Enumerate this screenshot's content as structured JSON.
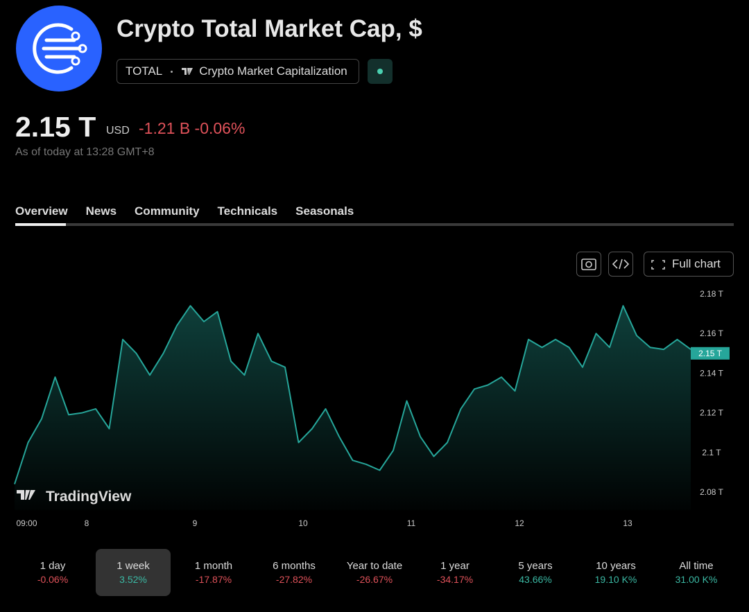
{
  "header": {
    "title": "Crypto Total Market Cap, $",
    "symbol": "TOTAL",
    "description": "Crypto Market Capitalization"
  },
  "quote": {
    "price": "2.15 T",
    "currency": "USD",
    "change": "-1.21 B",
    "change_percent": "-0.06%",
    "as_of": "As of today at 13:28 GMT+8"
  },
  "tabs": [
    "Overview",
    "News",
    "Community",
    "Technicals",
    "Seasonals"
  ],
  "toolbar": {
    "full_chart": "Full chart"
  },
  "chart_data": {
    "type": "line",
    "color": "#26a69a",
    "watermark": "TradingView",
    "x": [
      -1,
      2,
      5,
      8,
      11,
      14,
      17,
      20,
      23,
      26,
      29,
      32,
      35,
      38,
      41,
      44,
      47,
      50,
      53,
      56,
      59,
      62,
      65,
      68,
      71,
      74,
      77,
      80,
      83,
      86,
      89,
      92,
      95,
      98,
      101,
      104,
      107,
      110,
      113,
      116,
      119,
      122,
      125,
      128,
      131,
      134,
      137,
      140,
      143,
      146,
      149
    ],
    "values": [
      2.084,
      2.105,
      2.117,
      2.138,
      2.119,
      2.12,
      2.122,
      2.112,
      2.157,
      2.15,
      2.139,
      2.15,
      2.164,
      2.174,
      2.166,
      2.171,
      2.146,
      2.139,
      2.16,
      2.146,
      2.143,
      2.105,
      2.112,
      2.122,
      2.108,
      2.096,
      2.094,
      2.091,
      2.101,
      2.126,
      2.108,
      2.098,
      2.105,
      2.122,
      2.132,
      2.134,
      2.138,
      2.131,
      2.157,
      2.153,
      2.157,
      2.153,
      2.143,
      2.16,
      2.153,
      2.174,
      2.159,
      2.153,
      2.152,
      2.157,
      2.152
    ],
    "xlim": [
      -1,
      149
    ],
    "ylim": [
      2.071,
      2.185
    ],
    "xticks": [
      {
        "value": 0,
        "label": "09:00"
      },
      {
        "value": 15,
        "label": "8"
      },
      {
        "value": 39,
        "label": "9"
      },
      {
        "value": 63,
        "label": "10"
      },
      {
        "value": 87,
        "label": "11"
      },
      {
        "value": 111,
        "label": "12"
      },
      {
        "value": 135,
        "label": "13"
      }
    ],
    "yticks": [
      {
        "value": 2.08,
        "label": "2.08 T"
      },
      {
        "value": 2.1,
        "label": "2.1 T"
      },
      {
        "value": 2.12,
        "label": "2.12 T"
      },
      {
        "value": 2.14,
        "label": "2.14 T"
      },
      {
        "value": 2.16,
        "label": "2.16 T"
      },
      {
        "value": 2.18,
        "label": "2.18 T"
      }
    ],
    "last_value": {
      "value": 2.15,
      "label": "2.15 T"
    },
    "grid": false
  },
  "periods": [
    {
      "label": "1 day",
      "change": "-0.06%"
    },
    {
      "label": "1 week",
      "change": "3.52%"
    },
    {
      "label": "1 month",
      "change": "-17.87%"
    },
    {
      "label": "6 months",
      "change": "-27.82%"
    },
    {
      "label": "Year to date",
      "change": "-26.67%"
    },
    {
      "label": "1 year",
      "change": "-34.17%"
    },
    {
      "label": "5 years",
      "change": "43.66%"
    },
    {
      "label": "10 years",
      "change": "19.10 K%"
    },
    {
      "label": "All time",
      "change": "31.00 K%"
    }
  ],
  "selected_period": 1
}
